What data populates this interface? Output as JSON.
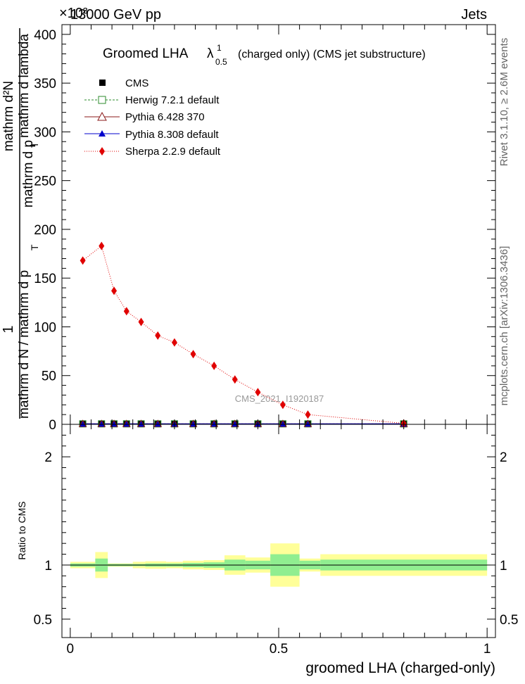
{
  "header": {
    "left": "13000 GeV pp",
    "right": "Jets",
    "multiplier": "×10³"
  },
  "side_labels": {
    "rivet": "Rivet 3.1.10, ≥ 2.6M events",
    "mcplots": "mcplots.cern.ch [arXiv:1306.3436]"
  },
  "chart_data": [
    {
      "type": "line",
      "title": "Groomed LHA  λ¹₀.₅  (charged only) (CMS jet substructure)",
      "title_parts": {
        "main": "Groomed LHA",
        "lambda": "λ",
        "sup": "1",
        "sub": "0.5",
        "rest": "(charged only) (CMS jet substructure)"
      },
      "ylabel_top": "1",
      "ylabel_numerator_1": "mathrm d²N",
      "ylabel_numerator_2": "mathrm d p",
      "ylabel_numerator_sub": "T",
      "ylabel_numerator_3": "mathrm d lambda",
      "ylabel_denominator_1": "mathrm d N / mathrm d p",
      "ylabel_denominator_sub": "T",
      "watermark": "CMS_2021_I1920187",
      "xlim": [
        -0.02,
        1.02
      ],
      "ylim": [
        0,
        410
      ],
      "y_ticks": [
        "0",
        "50",
        "100",
        "150",
        "200",
        "250",
        "300",
        "350",
        "400"
      ],
      "legend_position": "top-left",
      "x_bin_edges": [
        0.0,
        0.06,
        0.09,
        0.12,
        0.15,
        0.18,
        0.23,
        0.27,
        0.32,
        0.37,
        0.42,
        0.48,
        0.55,
        0.6,
        1.0
      ],
      "series": [
        {
          "name": "CMS",
          "color": "#000000",
          "marker": "square-filled",
          "x": [
            0.03,
            0.075,
            0.105,
            0.135,
            0.17,
            0.21,
            0.25,
            0.295,
            0.345,
            0.395,
            0.45,
            0.51,
            0.57,
            0.8
          ],
          "values": [
            0.5,
            0.5,
            0.5,
            0.5,
            0.5,
            0.5,
            0.5,
            0.5,
            0.5,
            0.5,
            0.5,
            0.5,
            0.5,
            0.5
          ]
        },
        {
          "name": "Herwig 7.2.1 default",
          "color": "#2e8b2e",
          "marker": "square-open",
          "line": "dashed",
          "x": [
            0.03,
            0.075,
            0.105,
            0.135,
            0.17,
            0.21,
            0.25,
            0.295,
            0.345,
            0.395,
            0.45,
            0.51,
            0.57,
            0.8
          ],
          "values": [
            0.5,
            0.5,
            0.5,
            0.5,
            0.5,
            0.5,
            0.5,
            0.5,
            0.5,
            0.5,
            0.5,
            0.5,
            0.5,
            0.5
          ]
        },
        {
          "name": "Pythia 6.428 370",
          "color": "#8b1a1a",
          "marker": "triangle-open",
          "line": "solid",
          "x": [
            0.03,
            0.075,
            0.105,
            0.135,
            0.17,
            0.21,
            0.25,
            0.295,
            0.345,
            0.395,
            0.45,
            0.51,
            0.57,
            0.8
          ],
          "values": [
            0.5,
            0.5,
            0.5,
            0.5,
            0.5,
            0.5,
            0.5,
            0.5,
            0.5,
            0.5,
            0.5,
            0.5,
            0.5,
            0.5
          ]
        },
        {
          "name": "Pythia 8.308 default",
          "color": "#0000cc",
          "marker": "triangle-filled",
          "line": "solid",
          "x": [
            0.03,
            0.075,
            0.105,
            0.135,
            0.17,
            0.21,
            0.25,
            0.295,
            0.345,
            0.395,
            0.45,
            0.51,
            0.57,
            0.8
          ],
          "values": [
            0.5,
            0.5,
            0.5,
            0.5,
            0.5,
            0.5,
            0.5,
            0.5,
            0.5,
            0.5,
            0.5,
            0.5,
            0.5,
            0.5
          ]
        },
        {
          "name": "Sherpa 2.2.9 default",
          "color": "#e00000",
          "marker": "diamond-filled",
          "line": "dotted",
          "x": [
            0.03,
            0.075,
            0.105,
            0.135,
            0.17,
            0.21,
            0.25,
            0.295,
            0.345,
            0.395,
            0.45,
            0.51,
            0.57,
            0.8
          ],
          "values": [
            168,
            183,
            137,
            116,
            105,
            91,
            84,
            72,
            60,
            46,
            33,
            20,
            10,
            1
          ]
        }
      ]
    },
    {
      "type": "area",
      "ylabel": "Ratio to CMS",
      "xlabel": "groomed LHA (charged-only)",
      "xlim": [
        -0.02,
        1.02
      ],
      "ylim": [
        0.33,
        2.3
      ],
      "x_ticks": [
        "0",
        "0.5",
        "1"
      ],
      "y_ticks": [
        "0.5",
        "1",
        "2"
      ],
      "bands": {
        "x_edges": [
          0.0,
          0.06,
          0.09,
          0.12,
          0.15,
          0.18,
          0.23,
          0.27,
          0.32,
          0.37,
          0.42,
          0.48,
          0.55,
          0.6,
          1.0
        ],
        "stat_color": "#90ee90",
        "total_color": "#ffff99",
        "stat_low": [
          0.985,
          0.94,
          0.99,
          0.99,
          0.99,
          0.985,
          0.985,
          0.98,
          0.975,
          0.95,
          0.96,
          0.9,
          0.96,
          0.95
        ],
        "stat_high": [
          1.015,
          1.06,
          1.01,
          1.01,
          1.01,
          1.015,
          1.015,
          1.02,
          1.025,
          1.05,
          1.04,
          1.1,
          1.04,
          1.05
        ],
        "total_low": [
          0.97,
          0.88,
          0.985,
          0.985,
          0.97,
          0.965,
          0.97,
          0.96,
          0.955,
          0.91,
          0.93,
          0.8,
          0.94,
          0.9
        ],
        "total_high": [
          1.03,
          1.12,
          1.015,
          1.015,
          1.03,
          1.035,
          1.03,
          1.04,
          1.045,
          1.09,
          1.07,
          1.2,
          1.06,
          1.1
        ]
      },
      "reference_line": 1
    }
  ]
}
